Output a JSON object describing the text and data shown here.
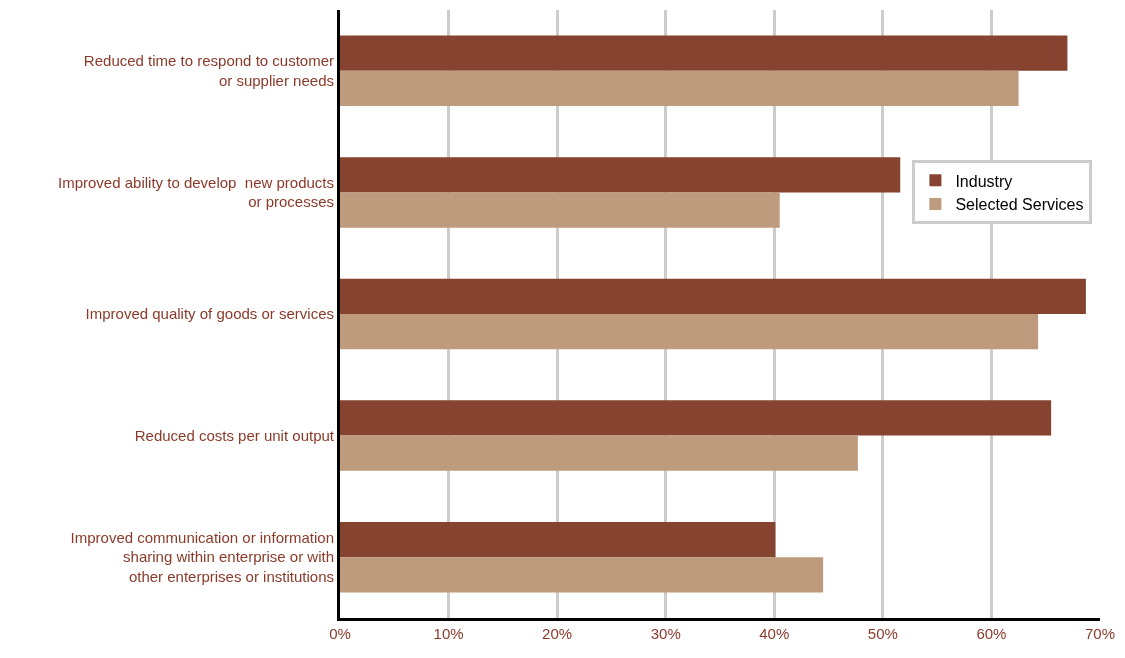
{
  "chart_data": {
    "type": "bar",
    "orientation": "horizontal",
    "categories": [
      "Reduced time to respond to customer\nor supplier needs",
      "Improved ability to develop  new products\nor processes",
      "Improved quality of goods or services",
      "Reduced costs per unit output",
      "Improved communication or information\nsharing within enterprise or with\nother enterprises or institutions"
    ],
    "series": [
      {
        "name": "Industry",
        "color": "#86432f",
        "values": [
          67.0,
          51.6,
          68.7,
          65.5,
          40.1
        ]
      },
      {
        "name": "Selected Services",
        "color": "#bd9b7c",
        "values": [
          62.5,
          40.5,
          64.3,
          47.7,
          44.5
        ]
      }
    ],
    "xlim": [
      0,
      70
    ],
    "xticks": [
      {
        "value": 0,
        "label": "0%"
      },
      {
        "value": 10,
        "label": "10%"
      },
      {
        "value": 20,
        "label": "20%"
      },
      {
        "value": 30,
        "label": "30%"
      },
      {
        "value": 40,
        "label": "40%"
      },
      {
        "value": 50,
        "label": "50%"
      },
      {
        "value": 60,
        "label": "60%"
      },
      {
        "value": 70,
        "label": "70%"
      }
    ],
    "grid": "x",
    "legend": "right"
  }
}
